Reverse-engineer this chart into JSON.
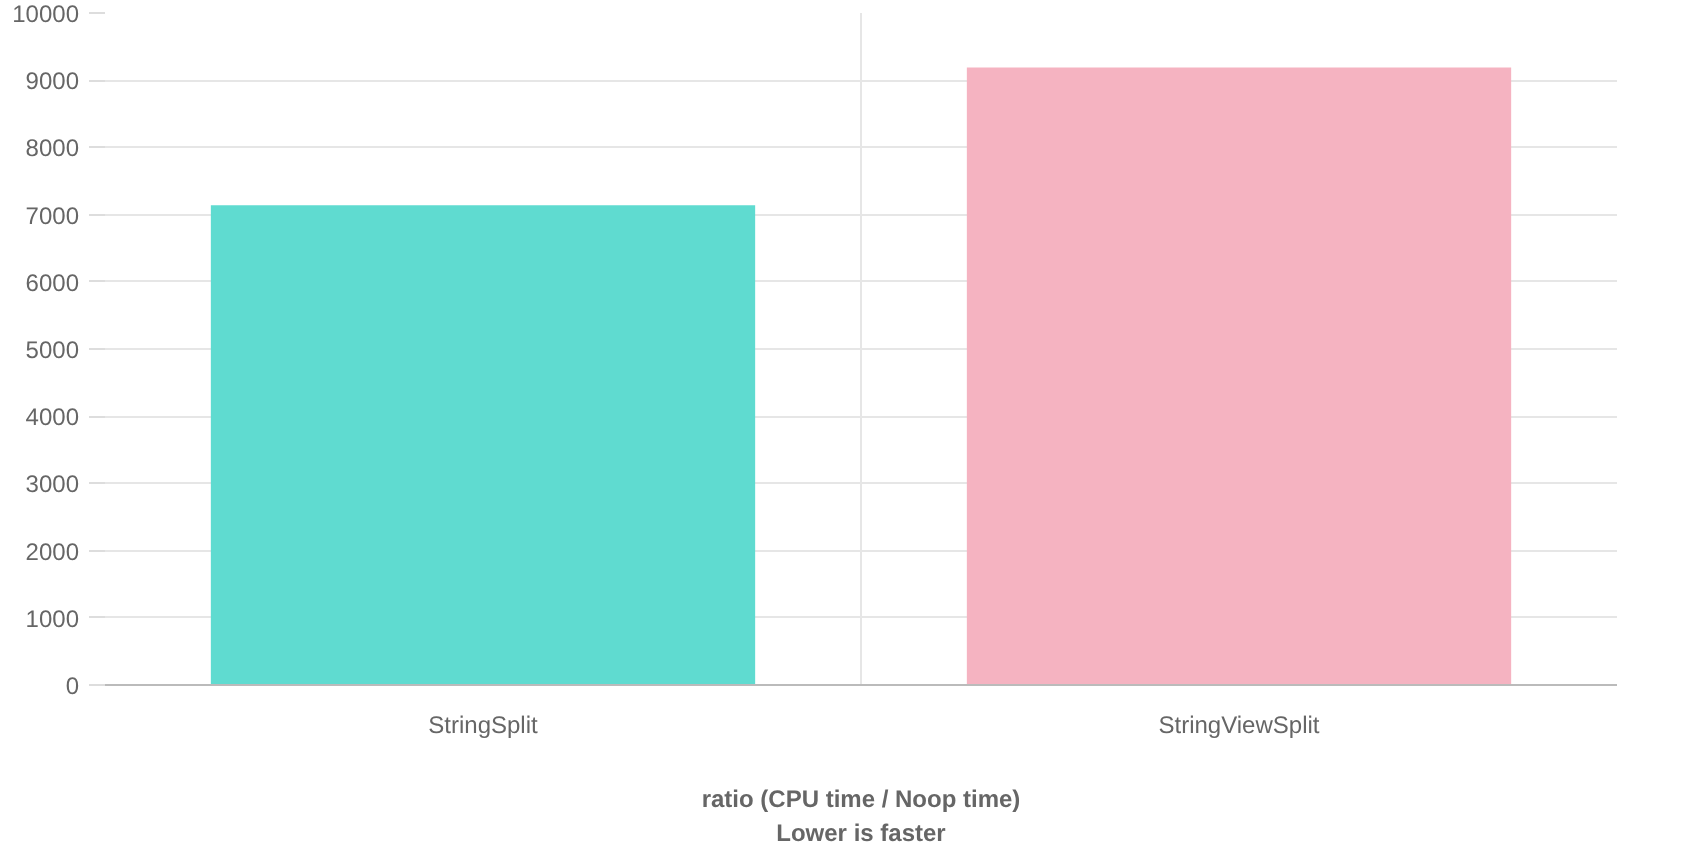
{
  "chart_data": {
    "type": "bar",
    "xlabel": "ratio (CPU time / Noop time)\nLower is faster",
    "categories": [
      "StringSplit",
      "StringViewSplit"
    ],
    "colors": [
      "#5fdbd0",
      "#f5b3c1"
    ],
    "values": [
      7140,
      9190
    ],
    "ylim": [
      0,
      10000
    ],
    "yticks": [
      0,
      1000,
      2000,
      3000,
      4000,
      5000,
      6000,
      7000,
      8000,
      9000,
      10000
    ],
    "grid": true
  }
}
